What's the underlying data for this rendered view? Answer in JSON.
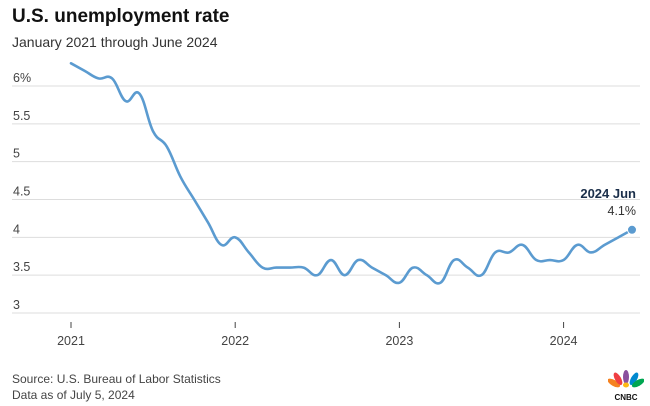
{
  "header": {
    "title": "U.S. unemployment rate",
    "subtitle": "January 2021 through June 2024"
  },
  "footer": {
    "source": "Source: U.S. Bureau of Labor Statistics",
    "date_note": "Data as of July 5, 2024"
  },
  "logo": {
    "text": "CNBC",
    "icon": "nbc-peacock-icon"
  },
  "annotation": {
    "label": "2024 Jun",
    "value": "4.1%"
  },
  "colors": {
    "line": "#5b9bd0",
    "grid": "#dddddd",
    "annotation": "#1b2f4a"
  },
  "chart_data": {
    "type": "line",
    "title": "U.S. unemployment rate",
    "subtitle": "January 2021 through June 2024",
    "xlabel": "",
    "ylabel": "",
    "ylim": [
      3,
      6.3
    ],
    "y_ticks": [
      {
        "value": 6,
        "label": "6%"
      },
      {
        "value": 5.5,
        "label": "5.5"
      },
      {
        "value": 5,
        "label": "5"
      },
      {
        "value": 4.5,
        "label": "4.5"
      },
      {
        "value": 4,
        "label": "4"
      },
      {
        "value": 3.5,
        "label": "3.5"
      },
      {
        "value": 3,
        "label": "3"
      }
    ],
    "x_ticks": [
      "2021",
      "2022",
      "2023",
      "2024"
    ],
    "grid": "horizontal",
    "series": [
      {
        "x": [
          "2021-01",
          "2021-02",
          "2021-03",
          "2021-04",
          "2021-05",
          "2021-06",
          "2021-07",
          "2021-08",
          "2021-09",
          "2021-10",
          "2021-11",
          "2021-12",
          "2022-01",
          "2022-02",
          "2022-03",
          "2022-04",
          "2022-05",
          "2022-06",
          "2022-07",
          "2022-08",
          "2022-09",
          "2022-10",
          "2022-11",
          "2022-12",
          "2023-01",
          "2023-02",
          "2023-03",
          "2023-04",
          "2023-05",
          "2023-06",
          "2023-07",
          "2023-08",
          "2023-09",
          "2023-10",
          "2023-11",
          "2023-12",
          "2024-01",
          "2024-02",
          "2024-03",
          "2024-04",
          "2024-05",
          "2024-06"
        ],
        "values": [
          6.3,
          6.2,
          6.1,
          6.1,
          5.8,
          5.9,
          5.4,
          5.2,
          4.8,
          4.5,
          4.2,
          3.9,
          4.0,
          3.8,
          3.6,
          3.6,
          3.6,
          3.6,
          3.5,
          3.7,
          3.5,
          3.7,
          3.6,
          3.5,
          3.4,
          3.6,
          3.5,
          3.4,
          3.7,
          3.6,
          3.5,
          3.8,
          3.8,
          3.9,
          3.7,
          3.7,
          3.7,
          3.9,
          3.8,
          3.9,
          4.0,
          4.1
        ]
      }
    ]
  }
}
